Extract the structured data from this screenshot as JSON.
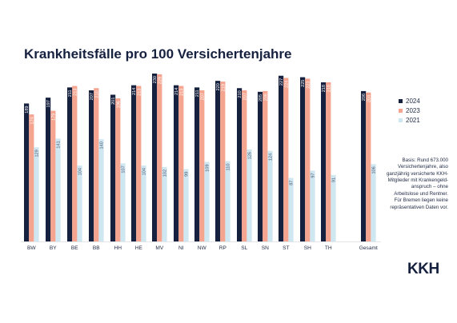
{
  "title": "Krankheitsfälle pro 100 Versichertenjahre",
  "legend": [
    {
      "label": "2024",
      "color": "#16213f"
    },
    {
      "label": "2023",
      "color": "#f5a48f"
    },
    {
      "label": "2021",
      "color": "#cfe7f1"
    }
  ],
  "note": "Basis: Rund 673.000 Versichertenjahre, also ganzjährig versicherte KKH-Mitglieder mit Krankengeld-anspruch – ohne Arbeitslose und Rentner. Für Bremen liegen keine repräsentativen Daten vor.",
  "logo": "KKH",
  "chart_data": {
    "type": "bar",
    "categories": [
      "BW",
      "BY",
      "BE",
      "BB",
      "HH",
      "HE",
      "MV",
      "NI",
      "NW",
      "RP",
      "SL",
      "SN",
      "ST",
      "SH",
      "TH",
      "Gesamt"
    ],
    "series": [
      {
        "name": "2024",
        "values": [
          189,
          197,
          211,
          207,
          201,
          214,
          230,
          214,
          211,
          220,
          210,
          205,
          227,
          225,
          218,
          206
        ]
      },
      {
        "name": "2023",
        "values": [
          174,
          179,
          213,
          210,
          196,
          213,
          229,
          213,
          207,
          219,
          207,
          206,
          224,
          223,
          218,
          204
        ]
      },
      {
        "name": "2021",
        "values": [
          129,
          141,
          104,
          140,
          107,
          104,
          102,
          99,
          109,
          110,
          126,
          124,
          87,
          97,
          91,
          106
        ]
      }
    ],
    "ylim": [
      0,
      240
    ],
    "grid": false,
    "legend_position": "right"
  }
}
